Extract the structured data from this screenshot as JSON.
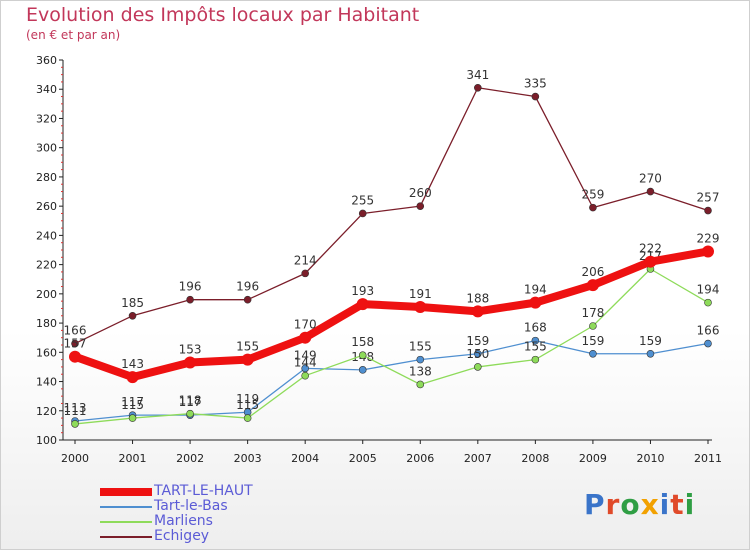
{
  "title": "Evolution des Impôts locaux par Habitant",
  "subtitle": "(en € et par an)",
  "logo": {
    "text": "Proxiti",
    "colors": [
      "#3a74c9",
      "#e04a2a",
      "#2f9e44",
      "#f2a100",
      "#3a74c9",
      "#e04a2a",
      "#2f9e44"
    ]
  },
  "chart_data": {
    "type": "line",
    "categories": [
      "2000",
      "2001",
      "2002",
      "2003",
      "2004",
      "2005",
      "2006",
      "2007",
      "2008",
      "2009",
      "2010",
      "2011"
    ],
    "ylim": [
      100,
      360
    ],
    "yticks": [
      100,
      120,
      140,
      160,
      180,
      200,
      220,
      240,
      260,
      280,
      300,
      320,
      340,
      360
    ],
    "grid": false,
    "legend_position": "bottom-left",
    "series": [
      {
        "name": "TART-LE-HAUT",
        "color": "#ee1111",
        "values": [
          157,
          143,
          153,
          155,
          170,
          193,
          191,
          188,
          194,
          206,
          222,
          229
        ]
      },
      {
        "name": "Tart-le-Bas",
        "color": "#4f8fd0",
        "values": [
          113,
          117,
          117,
          119,
          149,
          148,
          155,
          159,
          168,
          159,
          159,
          166
        ]
      },
      {
        "name": "Marliens",
        "color": "#8edb5a",
        "values": [
          111,
          115,
          118,
          115,
          144,
          158,
          138,
          150,
          155,
          178,
          217,
          194
        ]
      },
      {
        "name": "Echigey",
        "color": "#7b1e2a",
        "values": [
          166,
          185,
          196,
          196,
          214,
          255,
          260,
          341,
          335,
          259,
          270,
          257
        ]
      }
    ]
  }
}
